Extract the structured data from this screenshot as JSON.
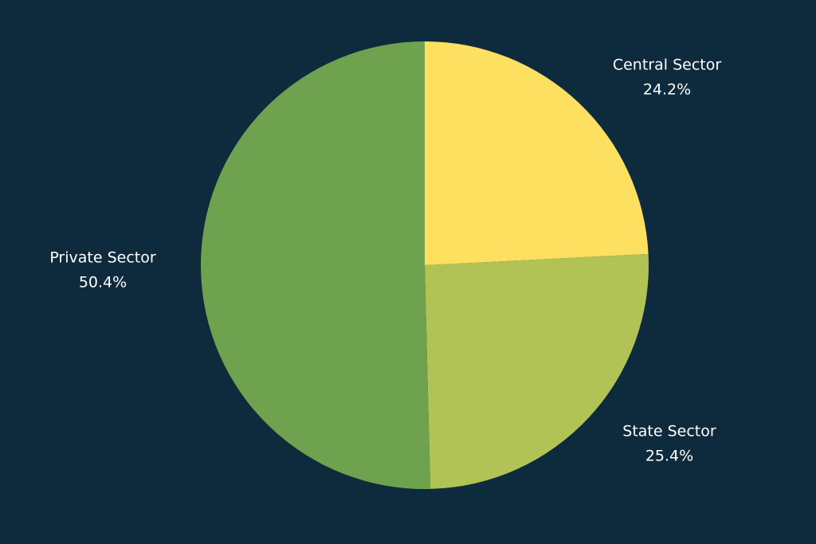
{
  "chart_data": {
    "type": "pie",
    "categories": [
      "Central Sector",
      "State Sector",
      "Private Sector"
    ],
    "values": [
      24.2,
      25.4,
      50.4
    ],
    "value_labels": [
      "24.2%",
      "25.4%",
      "50.4%"
    ],
    "colors": [
      "#fde05f",
      "#b2c355",
      "#6ea24f"
    ]
  }
}
